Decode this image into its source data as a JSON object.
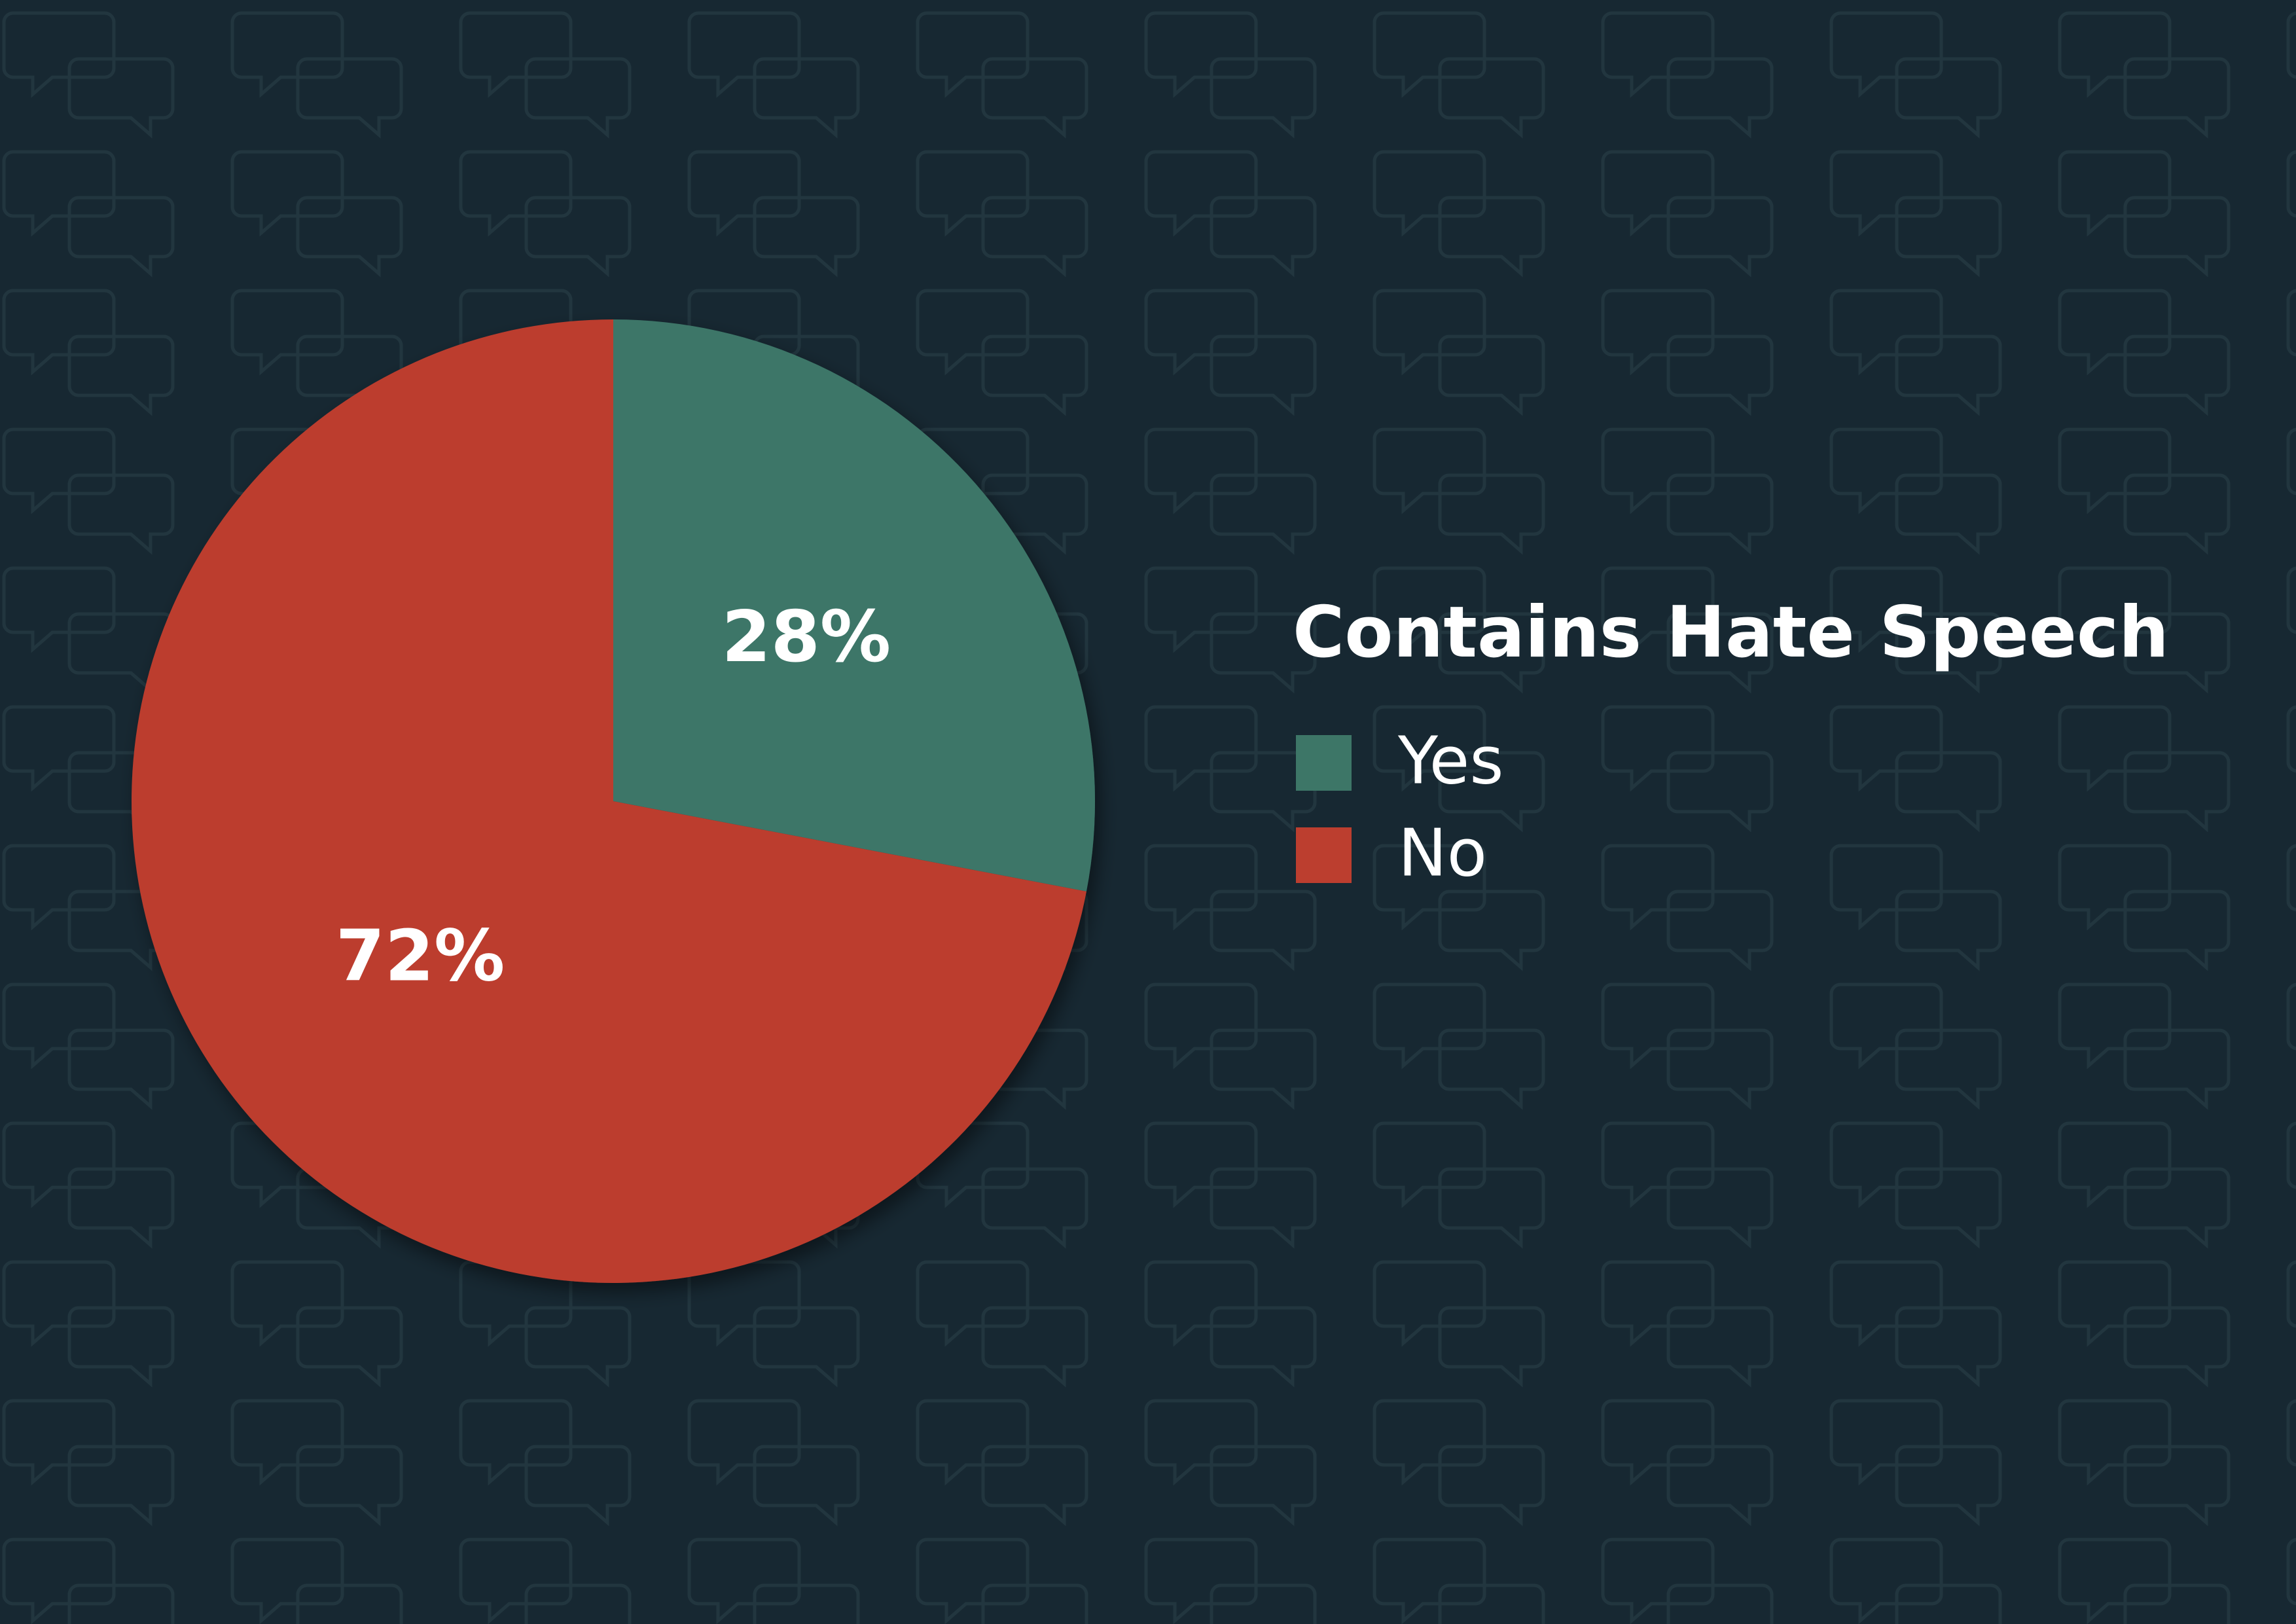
{
  "chart_data": {
    "type": "pie",
    "title": "Contains Hate Speech",
    "categories": [
      "Yes",
      "No"
    ],
    "values": [
      28,
      72
    ],
    "value_labels": [
      "28%",
      "72%"
    ],
    "colors": [
      "#3d7667",
      "#bc3e2f"
    ]
  }
}
